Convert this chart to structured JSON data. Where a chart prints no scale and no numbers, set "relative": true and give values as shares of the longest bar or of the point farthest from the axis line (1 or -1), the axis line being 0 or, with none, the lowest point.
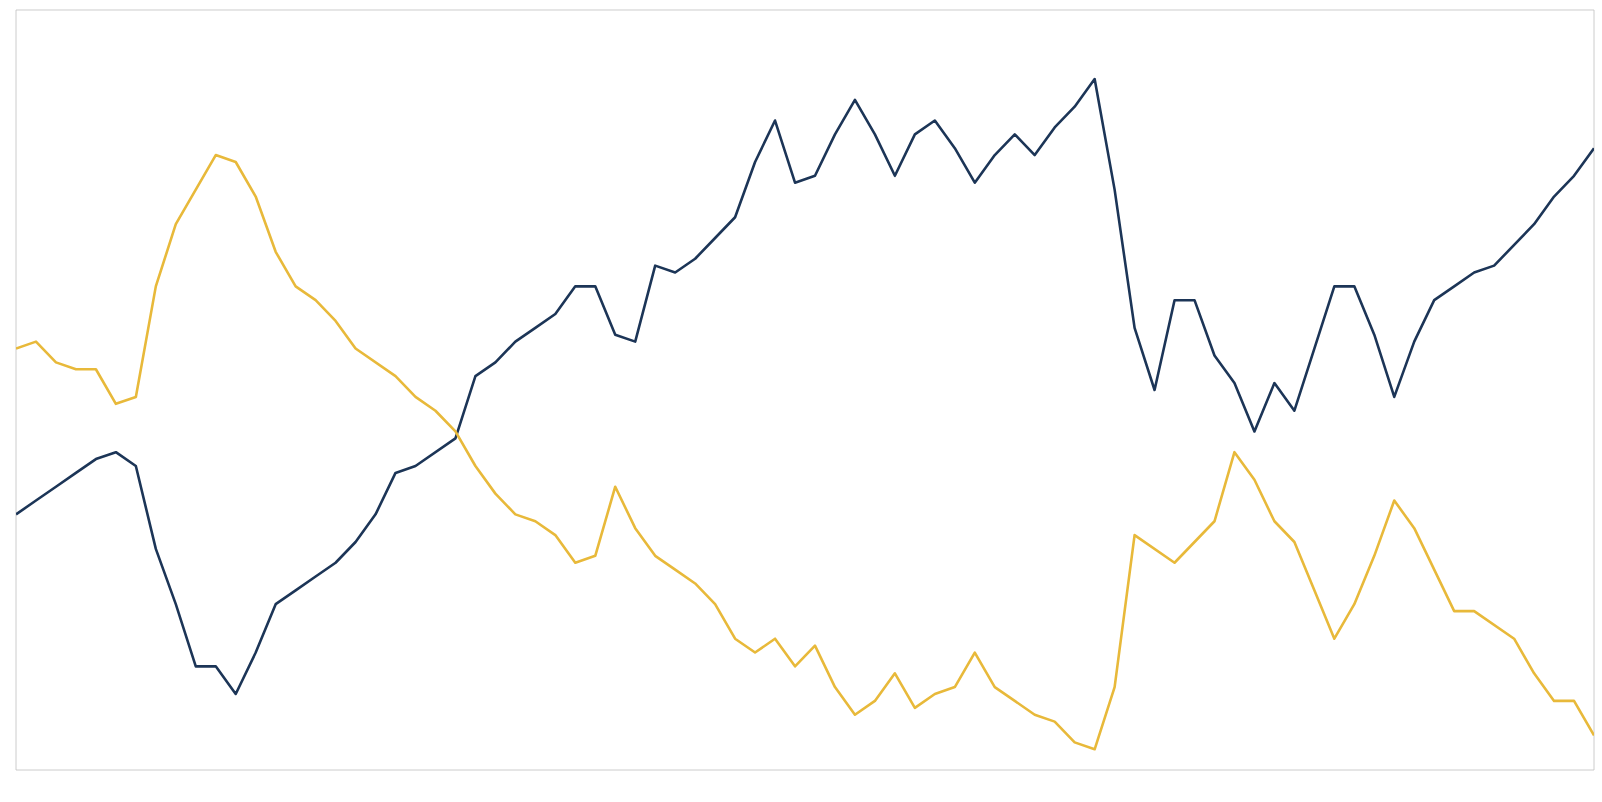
{
  "chart_data": {
    "type": "line",
    "relative": true,
    "marker": "none",
    "line_style": "solid",
    "categories": [
      null,
      null,
      null,
      null,
      null,
      null,
      null,
      null,
      null,
      null,
      null,
      null,
      null,
      null,
      null,
      null,
      null,
      null,
      null,
      null,
      null,
      null,
      null,
      null,
      null,
      null,
      null,
      null,
      null,
      null,
      null,
      null,
      null,
      null,
      null,
      null,
      null,
      null,
      null,
      null,
      null,
      null,
      null,
      null,
      null,
      null,
      null,
      null,
      null,
      null,
      null,
      null,
      null,
      null,
      null,
      null,
      null,
      null,
      null,
      null,
      null,
      null,
      null,
      null,
      null,
      null,
      null,
      null,
      null,
      null,
      null,
      null,
      null,
      null,
      null,
      null,
      null,
      null,
      null,
      null
    ],
    "series": [
      {
        "color": "#1c3557",
        "values": [
          0.37,
          0.39,
          0.41,
          0.43,
          0.45,
          0.46,
          0.44,
          0.32,
          0.24,
          0.15,
          0.15,
          0.11,
          0.17,
          0.24,
          0.26,
          0.28,
          0.3,
          0.33,
          0.37,
          0.43,
          0.44,
          0.46,
          0.48,
          0.57,
          0.59,
          0.62,
          0.64,
          0.66,
          0.7,
          0.7,
          0.63,
          0.62,
          0.73,
          0.72,
          0.74,
          0.77,
          0.8,
          0.88,
          0.94,
          0.85,
          0.86,
          0.92,
          0.97,
          0.92,
          0.86,
          0.92,
          0.94,
          0.9,
          0.85,
          0.89,
          0.92,
          0.89,
          0.93,
          0.96,
          1.0,
          0.84,
          0.64,
          0.55,
          0.68,
          0.68,
          0.6,
          0.56,
          0.49,
          0.56,
          0.52,
          0.61,
          0.7,
          0.7,
          0.63,
          0.54,
          0.62,
          0.68,
          0.7,
          0.72,
          0.73,
          0.76,
          0.79,
          0.83,
          0.86,
          0.9
        ]
      },
      {
        "color": "#e8b93a",
        "values": [
          0.61,
          0.62,
          0.59,
          0.58,
          0.58,
          0.53,
          0.54,
          0.7,
          0.79,
          0.84,
          0.89,
          0.88,
          0.83,
          0.75,
          0.7,
          0.68,
          0.65,
          0.61,
          0.59,
          0.57,
          0.54,
          0.52,
          0.49,
          0.44,
          0.4,
          0.37,
          0.36,
          0.34,
          0.3,
          0.31,
          0.41,
          0.35,
          0.31,
          0.29,
          0.27,
          0.24,
          0.19,
          0.17,
          0.19,
          0.15,
          0.18,
          0.12,
          0.08,
          0.1,
          0.14,
          0.09,
          0.11,
          0.12,
          0.17,
          0.12,
          0.1,
          0.08,
          0.07,
          0.04,
          0.03,
          0.12,
          0.34,
          0.32,
          0.3,
          0.33,
          0.36,
          0.46,
          0.42,
          0.36,
          0.33,
          0.26,
          0.19,
          0.24,
          0.31,
          0.39,
          0.35,
          0.29,
          0.23,
          0.23,
          0.21,
          0.19,
          0.14,
          0.1,
          0.1,
          0.05
        ]
      }
    ]
  }
}
